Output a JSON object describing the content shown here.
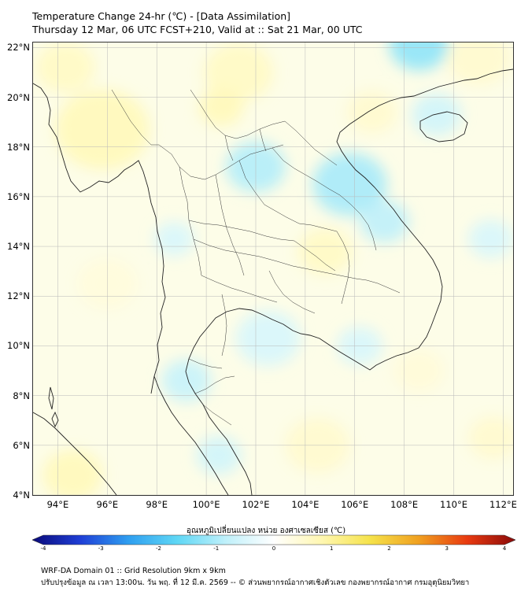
{
  "header": {
    "title_line1": "Temperature Change 24-hr (℃) - [Data Assimilation]",
    "title_line2": "Thursday 12 Mar, 06 UTC FCST+210, Valid at :: Sat 21 Mar, 00 UTC"
  },
  "map": {
    "lat_labels": [
      {
        "value": 22,
        "label": "22°N"
      },
      {
        "value": 20,
        "label": "20°N"
      },
      {
        "value": 18,
        "label": "18°N"
      },
      {
        "value": 16,
        "label": "16°N"
      },
      {
        "value": 14,
        "label": "14°N"
      },
      {
        "value": 12,
        "label": "12°N"
      },
      {
        "value": 10,
        "label": "10°N"
      },
      {
        "value": 8,
        "label": "8°N"
      },
      {
        "value": 6,
        "label": "6°N"
      },
      {
        "value": 4,
        "label": "4°N"
      }
    ],
    "lon_labels": [
      {
        "value": 94,
        "label": "94°E"
      },
      {
        "value": 96,
        "label": "96°E"
      },
      {
        "value": 98,
        "label": "98°E"
      },
      {
        "value": 100,
        "label": "100°E"
      },
      {
        "value": 102,
        "label": "102°E"
      },
      {
        "value": 104,
        "label": "104°E"
      },
      {
        "value": 106,
        "label": "106°E"
      },
      {
        "value": 108,
        "label": "108°E"
      },
      {
        "value": 110,
        "label": "110°E"
      },
      {
        "value": 112,
        "label": "112°E"
      }
    ],
    "lat_range": [
      4,
      22.2
    ],
    "lon_range": [
      93.0,
      112.4
    ],
    "gridlines": true
  },
  "colorbar": {
    "title": "อุณหภูมิเปลี่ยนแปลง หน่วย องศาเซลเซียส (℃)",
    "range": [
      -4,
      4
    ],
    "ticks": [
      "-4",
      "-3",
      "-2",
      "-1",
      "0",
      "1",
      "2",
      "3",
      "4"
    ],
    "colors_low": [
      "#0a0a7a",
      "#1f3fd6",
      "#2f9ff0",
      "#5fd7f5",
      "#bff0fa",
      "#ffffff"
    ],
    "colors_high": [
      "#ffffff",
      "#fff7b0",
      "#f5e24a",
      "#f0a020",
      "#e83a10",
      "#8a0a0a"
    ]
  },
  "field_blobs": [
    {
      "lon": 95.8,
      "lat": 18.7,
      "r": 1.9,
      "v": 0.7
    },
    {
      "lon": 94.3,
      "lat": 21.2,
      "r": 1.2,
      "v": 0.6
    },
    {
      "lon": 101.3,
      "lat": 21.0,
      "r": 1.4,
      "v": 0.6
    },
    {
      "lon": 100.6,
      "lat": 19.6,
      "r": 0.9,
      "v": 0.7
    },
    {
      "lon": 106.7,
      "lat": 19.4,
      "r": 1.0,
      "v": 0.5
    },
    {
      "lon": 111.0,
      "lat": 21.6,
      "r": 1.3,
      "v": 0.5
    },
    {
      "lon": 104.8,
      "lat": 13.8,
      "r": 1.1,
      "v": 0.6
    },
    {
      "lon": 108.6,
      "lat": 9.0,
      "r": 1.0,
      "v": 0.4
    },
    {
      "lon": 94.6,
      "lat": 4.8,
      "r": 1.2,
      "v": 0.7
    },
    {
      "lon": 104.5,
      "lat": 6.0,
      "r": 1.3,
      "v": 0.5
    },
    {
      "lon": 111.6,
      "lat": 6.3,
      "r": 1.0,
      "v": 0.5
    },
    {
      "lon": 96.0,
      "lat": 12.5,
      "r": 1.2,
      "v": 0.35
    },
    {
      "lon": 108.6,
      "lat": 22.1,
      "r": 1.2,
      "v": -1.2
    },
    {
      "lon": 105.8,
      "lat": 16.5,
      "r": 1.5,
      "v": -1.0
    },
    {
      "lon": 102.0,
      "lat": 17.2,
      "r": 1.2,
      "v": -0.9
    },
    {
      "lon": 107.2,
      "lat": 15.0,
      "r": 1.0,
      "v": -0.8
    },
    {
      "lon": 109.3,
      "lat": 19.3,
      "r": 1.0,
      "v": -0.6
    },
    {
      "lon": 111.5,
      "lat": 14.3,
      "r": 0.9,
      "v": -0.5
    },
    {
      "lon": 99.2,
      "lat": 8.6,
      "r": 1.0,
      "v": -0.7
    },
    {
      "lon": 100.5,
      "lat": 5.6,
      "r": 0.9,
      "v": -0.6
    },
    {
      "lon": 102.5,
      "lat": 10.3,
      "r": 1.3,
      "v": -0.5
    },
    {
      "lon": 106.2,
      "lat": 10.0,
      "r": 0.9,
      "v": -0.5
    },
    {
      "lon": 98.7,
      "lat": 14.3,
      "r": 0.8,
      "v": -0.5
    }
  ],
  "footer": {
    "line1": "WRF-DA Domain 01 :: Grid Resolution 9km x 9km",
    "line2": "ปรับปรุงข้อมูล ณ เวลา 13:00น. วัน พฤ. ที่ 12 มี.ค. 2569 -- © ส่วนพยากรณ์อากาศเชิงตัวเลข กองพยากรณ์อากาศ กรมอุตุนิยมวิทยา"
  }
}
